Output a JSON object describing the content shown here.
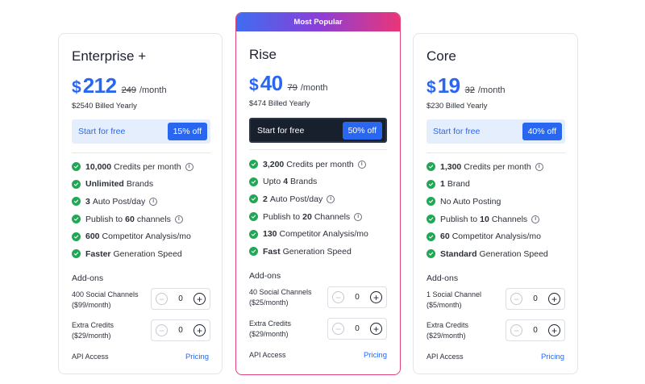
{
  "colors": {
    "accent": "#2a67f0",
    "check": "#1fa855",
    "popular_gradient": [
      "#3f6df0",
      "#8a3fd8",
      "#e93678"
    ],
    "dark_cta": "#18202e"
  },
  "plans": [
    {
      "name": "Enterprise +",
      "currency": "$",
      "price": "212",
      "old_price": "249",
      "period": "/month",
      "billed": "$2540 Billed Yearly",
      "cta": "Start for free",
      "discount": "15% off",
      "features": [
        {
          "bold": "10,000",
          "text": "Credits per month",
          "info": true
        },
        {
          "bold": "Unlimited",
          "text": "Brands",
          "info": false
        },
        {
          "bold": "3",
          "text": "Auto Post/day",
          "info": true
        },
        {
          "pre": "Publish to",
          "bold": "60",
          "text": "channels",
          "info": true
        },
        {
          "bold": "600",
          "text": "Competitor Analysis/mo",
          "info": false
        },
        {
          "bold": "Faster",
          "text": "Generation Speed",
          "info": false
        }
      ],
      "addons_title": "Add-ons",
      "addons": [
        {
          "label": "400 Social Channels ($99/month)",
          "value": "0"
        },
        {
          "label": "Extra Credits ($29/month)",
          "value": "0"
        }
      ],
      "api_label": "API Access",
      "pricing_link": "Pricing"
    },
    {
      "badge": "Most Popular",
      "name": "Rise",
      "currency": "$",
      "price": "40",
      "old_price": "79",
      "period": "/month",
      "billed": "$474 Billed Yearly",
      "cta": "Start for free",
      "discount": "50% off",
      "features": [
        {
          "bold": "3,200",
          "text": "Credits per month",
          "info": true
        },
        {
          "pre": "Upto",
          "bold": "4",
          "text": "Brands",
          "info": false
        },
        {
          "bold": "2",
          "text": "Auto Post/day",
          "info": true
        },
        {
          "pre": "Publish to",
          "bold": "20",
          "text": "Channels",
          "info": true
        },
        {
          "bold": "130",
          "text": "Competitor Analysis/mo",
          "info": false
        },
        {
          "bold": "Fast",
          "text": "Generation Speed",
          "info": false
        }
      ],
      "addons_title": "Add-ons",
      "addons": [
        {
          "label": "40 Social Channels ($25/month)",
          "value": "0"
        },
        {
          "label": "Extra Credits ($29/month)",
          "value": "0"
        }
      ],
      "api_label": "API Access",
      "pricing_link": "Pricing"
    },
    {
      "name": "Core",
      "currency": "$",
      "price": "19",
      "old_price": "32",
      "period": "/month",
      "billed": "$230 Billed Yearly",
      "cta": "Start for free",
      "discount": "40% off",
      "features": [
        {
          "bold": "1,300",
          "text": "Credits per month",
          "info": true
        },
        {
          "bold": "1",
          "text": "Brand",
          "info": false
        },
        {
          "pre": "No Auto Posting",
          "info": false
        },
        {
          "pre": "Publish to",
          "bold": "10",
          "text": "Channels",
          "info": true
        },
        {
          "bold": "60",
          "text": "Competitor Analysis/mo",
          "info": false
        },
        {
          "bold": "Standard",
          "text": "Generation Speed",
          "info": false
        }
      ],
      "addons_title": "Add-ons",
      "addons": [
        {
          "label": "1 Social Channel ($5/month)",
          "value": "0"
        },
        {
          "label": "Extra Credits ($29/month)",
          "value": "0"
        }
      ],
      "api_label": "API Access",
      "pricing_link": "Pricing"
    }
  ]
}
